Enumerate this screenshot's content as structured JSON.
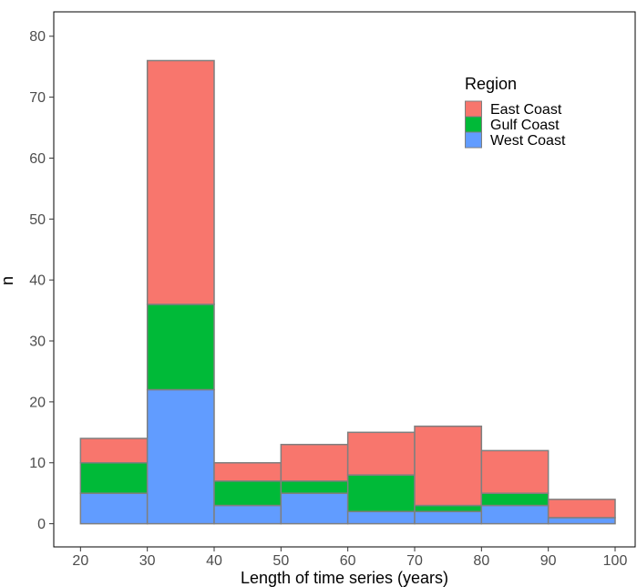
{
  "chart_data": {
    "type": "bar",
    "stacked": true,
    "bin_edges": [
      20,
      30,
      40,
      50,
      60,
      70,
      80,
      90,
      100
    ],
    "series": [
      {
        "name": "West Coast",
        "color": "#619CFF",
        "values": [
          5,
          22,
          3,
          5,
          2,
          2,
          3,
          1
        ]
      },
      {
        "name": "Gulf Coast",
        "color": "#00BA38",
        "values": [
          5,
          14,
          4,
          2,
          6,
          1,
          2,
          0
        ]
      },
      {
        "name": "East Coast",
        "color": "#F8766D",
        "values": [
          4,
          40,
          3,
          6,
          7,
          13,
          7,
          3
        ]
      }
    ],
    "xlabel": "Length of time series (years)",
    "ylabel": "n",
    "xlim": [
      16,
      103
    ],
    "ylim": [
      -3.8,
      84
    ],
    "x_ticks": [
      20,
      30,
      40,
      50,
      60,
      70,
      80,
      90,
      100
    ],
    "y_ticks": [
      0,
      10,
      20,
      30,
      40,
      50,
      60,
      70,
      80
    ],
    "grid": false,
    "legend": {
      "title": "Region",
      "position": "top-right",
      "entries": [
        "East Coast",
        "Gulf Coast",
        "West Coast"
      ]
    },
    "bar_outline_color": "#7f7f7f"
  }
}
